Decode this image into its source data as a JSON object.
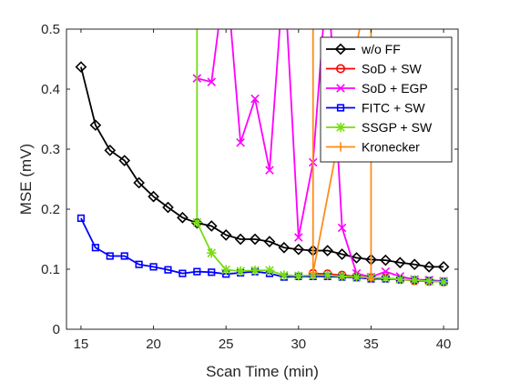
{
  "chart_data": {
    "type": "line",
    "title": "",
    "xlabel": "Scan Time (min)",
    "ylabel": "MSE (mV)",
    "xlim": [
      14,
      41
    ],
    "ylim": [
      0,
      0.5
    ],
    "xticks": [
      15,
      20,
      25,
      30,
      35,
      40
    ],
    "yticks": [
      0,
      0.1,
      0.2,
      0.3,
      0.4,
      0.5
    ],
    "xtick_labels": [
      "15",
      "20",
      "25",
      "30",
      "35",
      "40"
    ],
    "ytick_labels": [
      "0",
      "0.1",
      "0.2",
      "0.3",
      "0.4",
      "0.5"
    ],
    "legend_position": "top-right",
    "series": [
      {
        "name": "w/o FF",
        "color": "#000000",
        "marker": "diamond",
        "x": [
          15,
          16,
          17,
          18,
          19,
          20,
          21,
          22,
          23,
          24,
          25,
          26,
          27,
          28,
          29,
          30,
          31,
          32,
          33,
          34,
          35,
          36,
          37,
          38,
          39,
          40
        ],
        "y": [
          0.437,
          0.34,
          0.298,
          0.281,
          0.244,
          0.221,
          0.203,
          0.186,
          0.177,
          0.172,
          0.157,
          0.15,
          0.15,
          0.146,
          0.136,
          0.133,
          0.131,
          0.131,
          0.125,
          0.119,
          0.116,
          0.115,
          0.111,
          0.108,
          0.104,
          0.104
        ]
      },
      {
        "name": "SoD + SW",
        "color": "#ff0000",
        "marker": "circle",
        "x": [
          31,
          32,
          33,
          34,
          35,
          36,
          37,
          38,
          39,
          40
        ],
        "y": [
          0.093,
          0.092,
          0.09,
          0.088,
          0.086,
          0.085,
          0.083,
          0.081,
          0.08,
          0.079
        ]
      },
      {
        "name": "SoD + EGP",
        "color": "#ff00ff",
        "marker": "x",
        "x": [
          23,
          24,
          25,
          26,
          27,
          28,
          29,
          30,
          31,
          32,
          33,
          34,
          35,
          36,
          37,
          38,
          39,
          40
        ],
        "y": [
          0.418,
          0.412,
          0.6,
          0.311,
          0.384,
          0.265,
          0.6,
          0.153,
          0.278,
          0.6,
          0.169,
          0.093,
          0.087,
          0.096,
          0.088,
          0.083,
          0.082,
          0.08
        ]
      },
      {
        "name": "FITC + SW",
        "color": "#0000ff",
        "marker": "square",
        "x": [
          15,
          16,
          17,
          18,
          19,
          20,
          21,
          22,
          23,
          24,
          25,
          26,
          27,
          28,
          29,
          30,
          31,
          32,
          33,
          34,
          35,
          36,
          37,
          38,
          39,
          40
        ],
        "y": [
          0.185,
          0.136,
          0.122,
          0.122,
          0.108,
          0.104,
          0.099,
          0.093,
          0.096,
          0.095,
          0.092,
          0.094,
          0.096,
          0.093,
          0.087,
          0.088,
          0.088,
          0.088,
          0.087,
          0.086,
          0.084,
          0.084,
          0.083,
          0.082,
          0.081,
          0.079
        ]
      },
      {
        "name": "SSGP + SW",
        "color": "#77dd11",
        "marker": "asterisk",
        "x": [
          23,
          23,
          24,
          25,
          26,
          27,
          28,
          29,
          30,
          31,
          32,
          33,
          34,
          35,
          36,
          37,
          38,
          39,
          40
        ],
        "y": [
          0.6,
          0.178,
          0.127,
          0.099,
          0.097,
          0.098,
          0.098,
          0.09,
          0.089,
          0.09,
          0.09,
          0.088,
          0.087,
          0.086,
          0.085,
          0.083,
          0.082,
          0.08,
          0.079
        ]
      },
      {
        "name": "Kronecker",
        "color": "#ff8c1a",
        "marker": "plus",
        "x": [
          31,
          31,
          35,
          35
        ],
        "y": [
          0.6,
          0.094,
          0.6,
          0.085
        ]
      }
    ]
  }
}
